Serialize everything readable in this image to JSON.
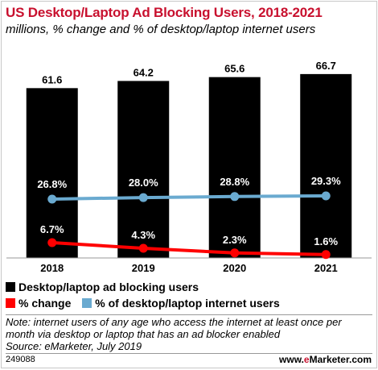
{
  "title": "US Desktop/Laptop Ad Blocking Users, 2018-2021",
  "subtitle": "millions, % change and % of desktop/laptop internet users",
  "legend": {
    "bars": "Desktop/laptop ad blocking users",
    "change": "% change",
    "share": "% of desktop/laptop internet users"
  },
  "note": "Note: internet users of any age who access the internet at least once per month via desktop or laptop that has an ad blocker enabled",
  "source": "Source: eMarketer, July 2019",
  "chart_id": "249088",
  "brand": {
    "prefix": "www.",
    "e": "e",
    "rest": "Marketer",
    "suffix": ".com"
  },
  "colors": {
    "bars": "#000000",
    "change": "#ff0000",
    "share": "#6aaad0"
  },
  "chart_data": {
    "type": "bar",
    "categories": [
      "2018",
      "2019",
      "2020",
      "2021"
    ],
    "series": [
      {
        "name": "Desktop/laptop ad blocking users",
        "values": [
          61.6,
          64.2,
          65.6,
          66.7
        ],
        "labels": [
          "61.6",
          "64.2",
          "65.6",
          "66.7"
        ]
      },
      {
        "name": "% change",
        "values": [
          6.7,
          4.3,
          2.3,
          1.6
        ],
        "labels": [
          "6.7%",
          "4.3%",
          "2.3%",
          "1.6%"
        ]
      },
      {
        "name": "% of desktop/laptop internet users",
        "values": [
          26.8,
          28.0,
          28.8,
          29.3
        ],
        "labels": [
          "26.8%",
          "28.0%",
          "28.8%",
          "29.3%"
        ]
      }
    ],
    "legend_position": "bottom",
    "grid": false
  }
}
